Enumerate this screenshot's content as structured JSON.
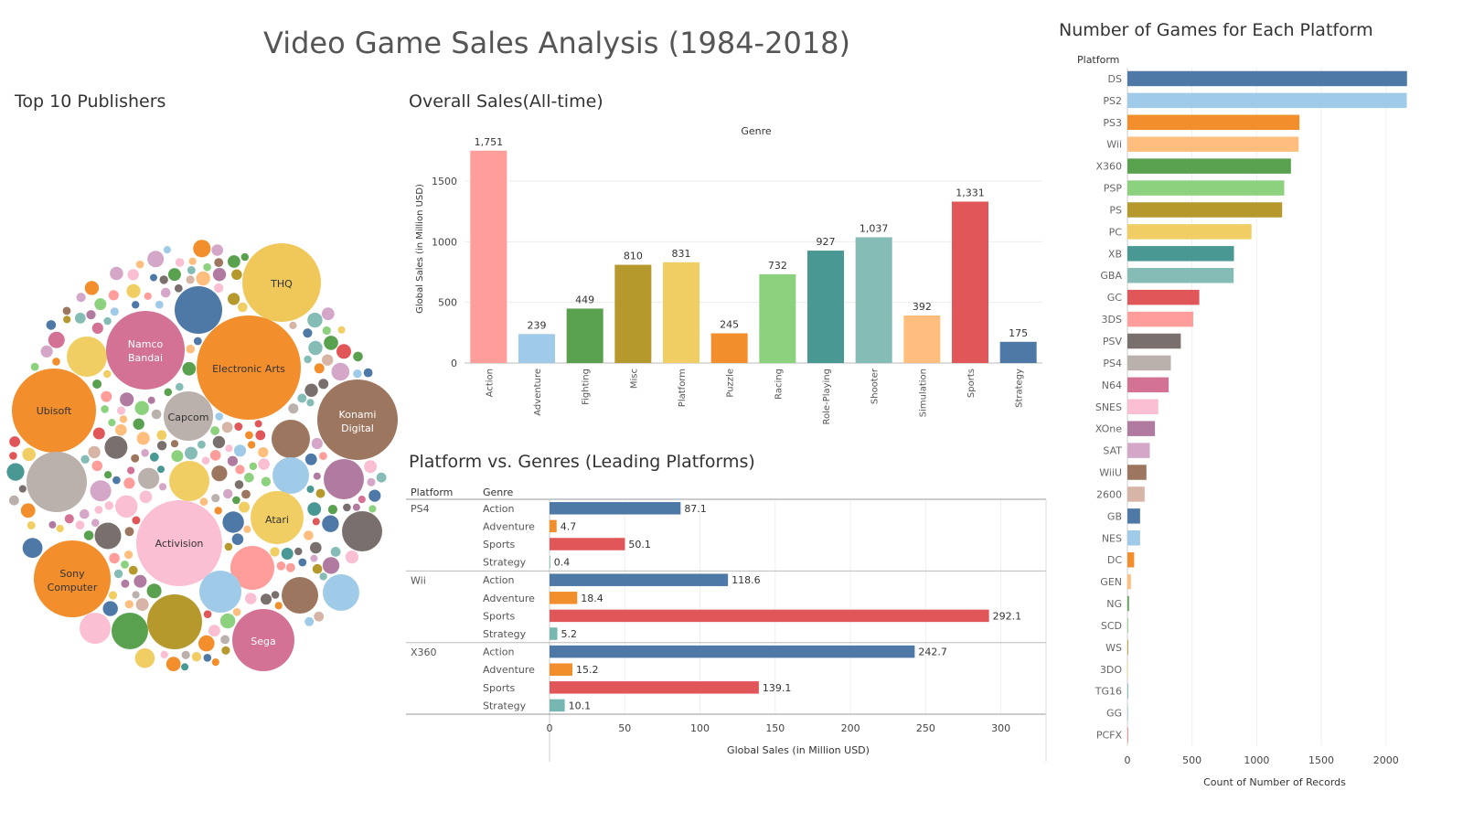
{
  "dashboard": {
    "title": "Video Game Sales Analysis (1984-2018)",
    "publishers_title": "Top 10 Publishers",
    "overall_title": "Overall Sales(All-time)",
    "pvg_title": "Platform vs. Genres (Leading Platforms)",
    "platform_count_title": "Number of Games for Each Platform"
  },
  "colors": {
    "Action": "#FF9D9A",
    "Adventure": "#A0CBE8",
    "Fighting": "#59A14F",
    "Misc": "#B6992D",
    "Platform": "#F1CE63",
    "Puzzle": "#F28E2B",
    "Racing": "#8CD17D",
    "Role-Playing": "#499894",
    "Shooter": "#86BCB6",
    "Simulation": "#FFBE7D",
    "Sports": "#E15759",
    "Strategy": "#4E79A7",
    "pvg_Action": "#4E79A7",
    "pvg_Adventure": "#F28E2B",
    "pvg_Sports": "#E15759",
    "pvg_Strategy": "#76B7B2"
  },
  "bubbles": {
    "labels": {
      "thq": "THQ",
      "namco": [
        "Namco",
        "Bandai"
      ],
      "ea": "Electronic Arts",
      "ubisoft": "Ubisoft",
      "capcom": "Capcom",
      "konami": [
        "Konami",
        "Digital"
      ],
      "atari": "Atari",
      "activision": "Activision",
      "sony": [
        "Sony",
        "Computer"
      ],
      "sega": "Sega"
    }
  },
  "chart_data": [
    {
      "type": "bar",
      "title": "Overall Sales(All-time)",
      "legend_title": "Genre",
      "ylabel": "Global Sales (in Million USD)",
      "xlabel": "",
      "ylim": [
        0,
        1900
      ],
      "yticks": [
        0,
        500,
        1000,
        1500
      ],
      "categories": [
        "Action",
        "Adventure",
        "Fighting",
        "Misc",
        "Platform",
        "Puzzle",
        "Racing",
        "Role-Playing",
        "Shooter",
        "Simulation",
        "Sports",
        "Strategy"
      ],
      "values": [
        1751,
        239,
        449,
        810,
        831,
        245,
        732,
        927,
        1037,
        392,
        1331,
        175
      ],
      "value_labels": [
        "1,751",
        "239",
        "449",
        "810",
        "831",
        "245",
        "732",
        "927",
        "1,037",
        "392",
        "1,331",
        "175"
      ]
    },
    {
      "type": "bar",
      "orientation": "horizontal",
      "title": "Platform vs. Genres (Leading Platforms)",
      "col_platform": "Platform",
      "col_genre": "Genre",
      "xlabel": "Global Sales (in Million USD)",
      "xlim": [
        0,
        330
      ],
      "xticks": [
        0,
        50,
        100,
        150,
        200,
        250,
        300
      ],
      "groups": [
        {
          "platform": "PS4",
          "rows": [
            {
              "genre": "Action",
              "value": 87.1,
              "label": "87.1"
            },
            {
              "genre": "Adventure",
              "value": 4.7,
              "label": "4.7"
            },
            {
              "genre": "Sports",
              "value": 50.1,
              "label": "50.1"
            },
            {
              "genre": "Strategy",
              "value": 0.4,
              "label": "0.4"
            }
          ]
        },
        {
          "platform": "Wii",
          "rows": [
            {
              "genre": "Action",
              "value": 118.6,
              "label": "118.6"
            },
            {
              "genre": "Adventure",
              "value": 18.4,
              "label": "18.4"
            },
            {
              "genre": "Sports",
              "value": 292.1,
              "label": "292.1"
            },
            {
              "genre": "Strategy",
              "value": 5.2,
              "label": "5.2"
            }
          ]
        },
        {
          "platform": "X360",
          "rows": [
            {
              "genre": "Action",
              "value": 242.7,
              "label": "242.7"
            },
            {
              "genre": "Adventure",
              "value": 15.2,
              "label": "15.2"
            },
            {
              "genre": "Sports",
              "value": 139.1,
              "label": "139.1"
            },
            {
              "genre": "Strategy",
              "value": 10.1,
              "label": "10.1"
            }
          ]
        }
      ]
    },
    {
      "type": "bar",
      "orientation": "horizontal",
      "title": "Number of Games for Each Platform",
      "ylabel": "Platform",
      "xlabel": "Count of Number of Records",
      "xlim": [
        0,
        2200
      ],
      "xticks": [
        0,
        500,
        1000,
        1500,
        2000
      ],
      "categories": [
        "DS",
        "PS2",
        "PS3",
        "Wii",
        "X360",
        "PSP",
        "PS",
        "PC",
        "XB",
        "GBA",
        "GC",
        "3DS",
        "PSV",
        "PS4",
        "N64",
        "SNES",
        "XOne",
        "SAT",
        "WiiU",
        "2600",
        "GB",
        "NES",
        "DC",
        "GEN",
        "NG",
        "SCD",
        "WS",
        "3DO",
        "TG16",
        "GG",
        "PCFX"
      ],
      "values": [
        2163,
        2161,
        1331,
        1325,
        1265,
        1213,
        1197,
        960,
        824,
        822,
        556,
        509,
        413,
        336,
        319,
        239,
        213,
        173,
        147,
        133,
        98,
        98,
        52,
        27,
        12,
        6,
        6,
        3,
        2,
        1,
        1
      ],
      "colors": [
        "#4E79A7",
        "#A0CBE8",
        "#F28E2B",
        "#FFBE7D",
        "#59A14F",
        "#8CD17D",
        "#B6992D",
        "#F1CE63",
        "#499894",
        "#86BCB6",
        "#E15759",
        "#FF9D9A",
        "#79706E",
        "#BAB0AC",
        "#D37295",
        "#FABFD2",
        "#B07AA1",
        "#D4A6C8",
        "#9D7660",
        "#D7B5A6",
        "#4E79A7",
        "#A0CBE8",
        "#F28E2B",
        "#FFBE7D",
        "#59A14F",
        "#8CD17D",
        "#B6992D",
        "#F1CE63",
        "#499894",
        "#86BCB6",
        "#E15759"
      ]
    }
  ]
}
